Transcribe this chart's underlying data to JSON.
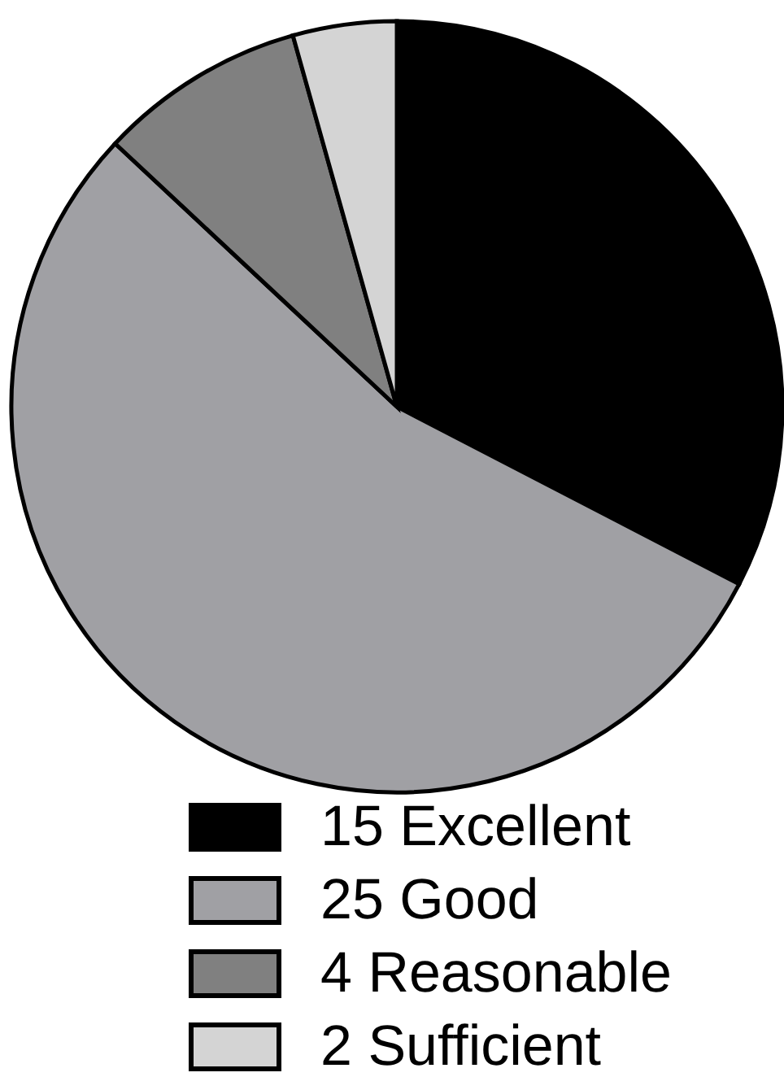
{
  "chart_data": {
    "type": "pie",
    "categories": [
      "15 Excellent",
      "25 Good",
      "4 Reasonable",
      "2 Sufficient"
    ],
    "values": [
      15,
      25,
      4,
      2
    ],
    "colors": [
      "#000000",
      "#a0a0a4",
      "#808080",
      "#d4d4d4"
    ],
    "legend": "bottom"
  }
}
